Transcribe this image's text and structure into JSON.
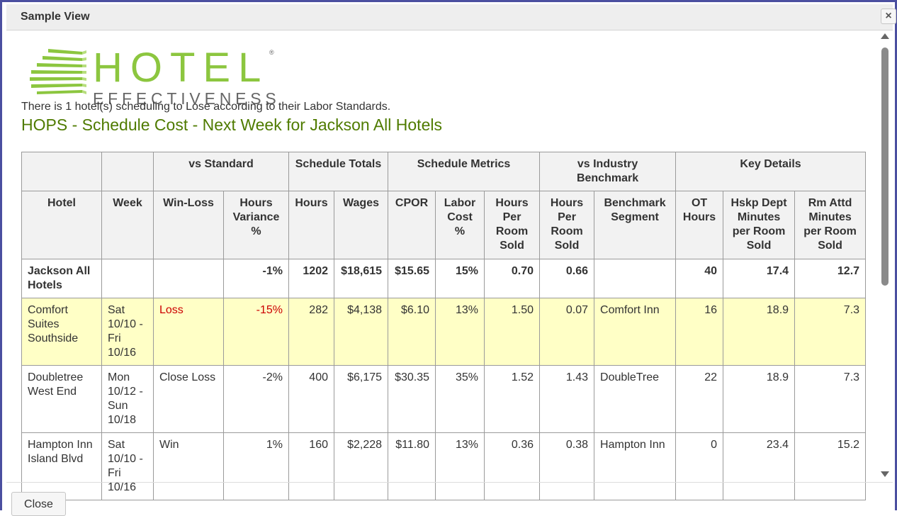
{
  "window": {
    "title": "Sample View",
    "close_icon": "×"
  },
  "logo": {
    "line1": "HOTEL",
    "line2": "EFFECTIVENESS",
    "reg": "®",
    "brand_color": "#8cc63f"
  },
  "summary": "There is 1 hotel(s) scheduling to Lose according to their Labor Standards.",
  "heading": "HOPS - Schedule Cost - Next Week for Jackson All Hotels",
  "table": {
    "group_headers": [
      "",
      "",
      "vs Standard",
      "Schedule Totals",
      "Schedule Metrics",
      "vs Industry Benchmark",
      "Key Details"
    ],
    "columns": [
      "Hotel",
      "Week",
      "Win-Loss",
      "Hours Variance %",
      "Hours",
      "Wages",
      "CPOR",
      "Labor Cost %",
      "Hours Per Room Sold",
      "Hours Per Room Sold",
      "Benchmark Segment",
      "OT Hours",
      "Hskp Dept Minutes per Room Sold",
      "Rm Attd Minutes per Room Sold"
    ],
    "rows": [
      [
        "Jackson All Hotels",
        "",
        "",
        "-1%",
        "1202",
        "$18,615",
        "$15.65",
        "15%",
        "0.70",
        "0.66",
        "",
        "40",
        "17.4",
        "12.7"
      ],
      [
        "Comfort Suites Southside",
        "Sat 10/10 - Fri 10/16",
        "Loss",
        "-15%",
        "282",
        "$4,138",
        "$6.10",
        "13%",
        "1.50",
        "0.07",
        "Comfort Inn",
        "16",
        "18.9",
        "7.3"
      ],
      [
        "Doubletree West End",
        "Mon 10/12 - Sun 10/18",
        "Close Loss",
        "-2%",
        "400",
        "$6,175",
        "$30.35",
        "35%",
        "1.52",
        "1.43",
        "DoubleTree",
        "22",
        "18.9",
        "7.3"
      ],
      [
        "Hampton Inn Island Blvd",
        "Sat 10/10 - Fri 10/16",
        "Win",
        "1%",
        "160",
        "$2,228",
        "$11.80",
        "13%",
        "0.36",
        "0.38",
        "Hampton Inn",
        "0",
        "23.4",
        "15.2"
      ]
    ]
  },
  "footer": {
    "close_label": "Close"
  }
}
